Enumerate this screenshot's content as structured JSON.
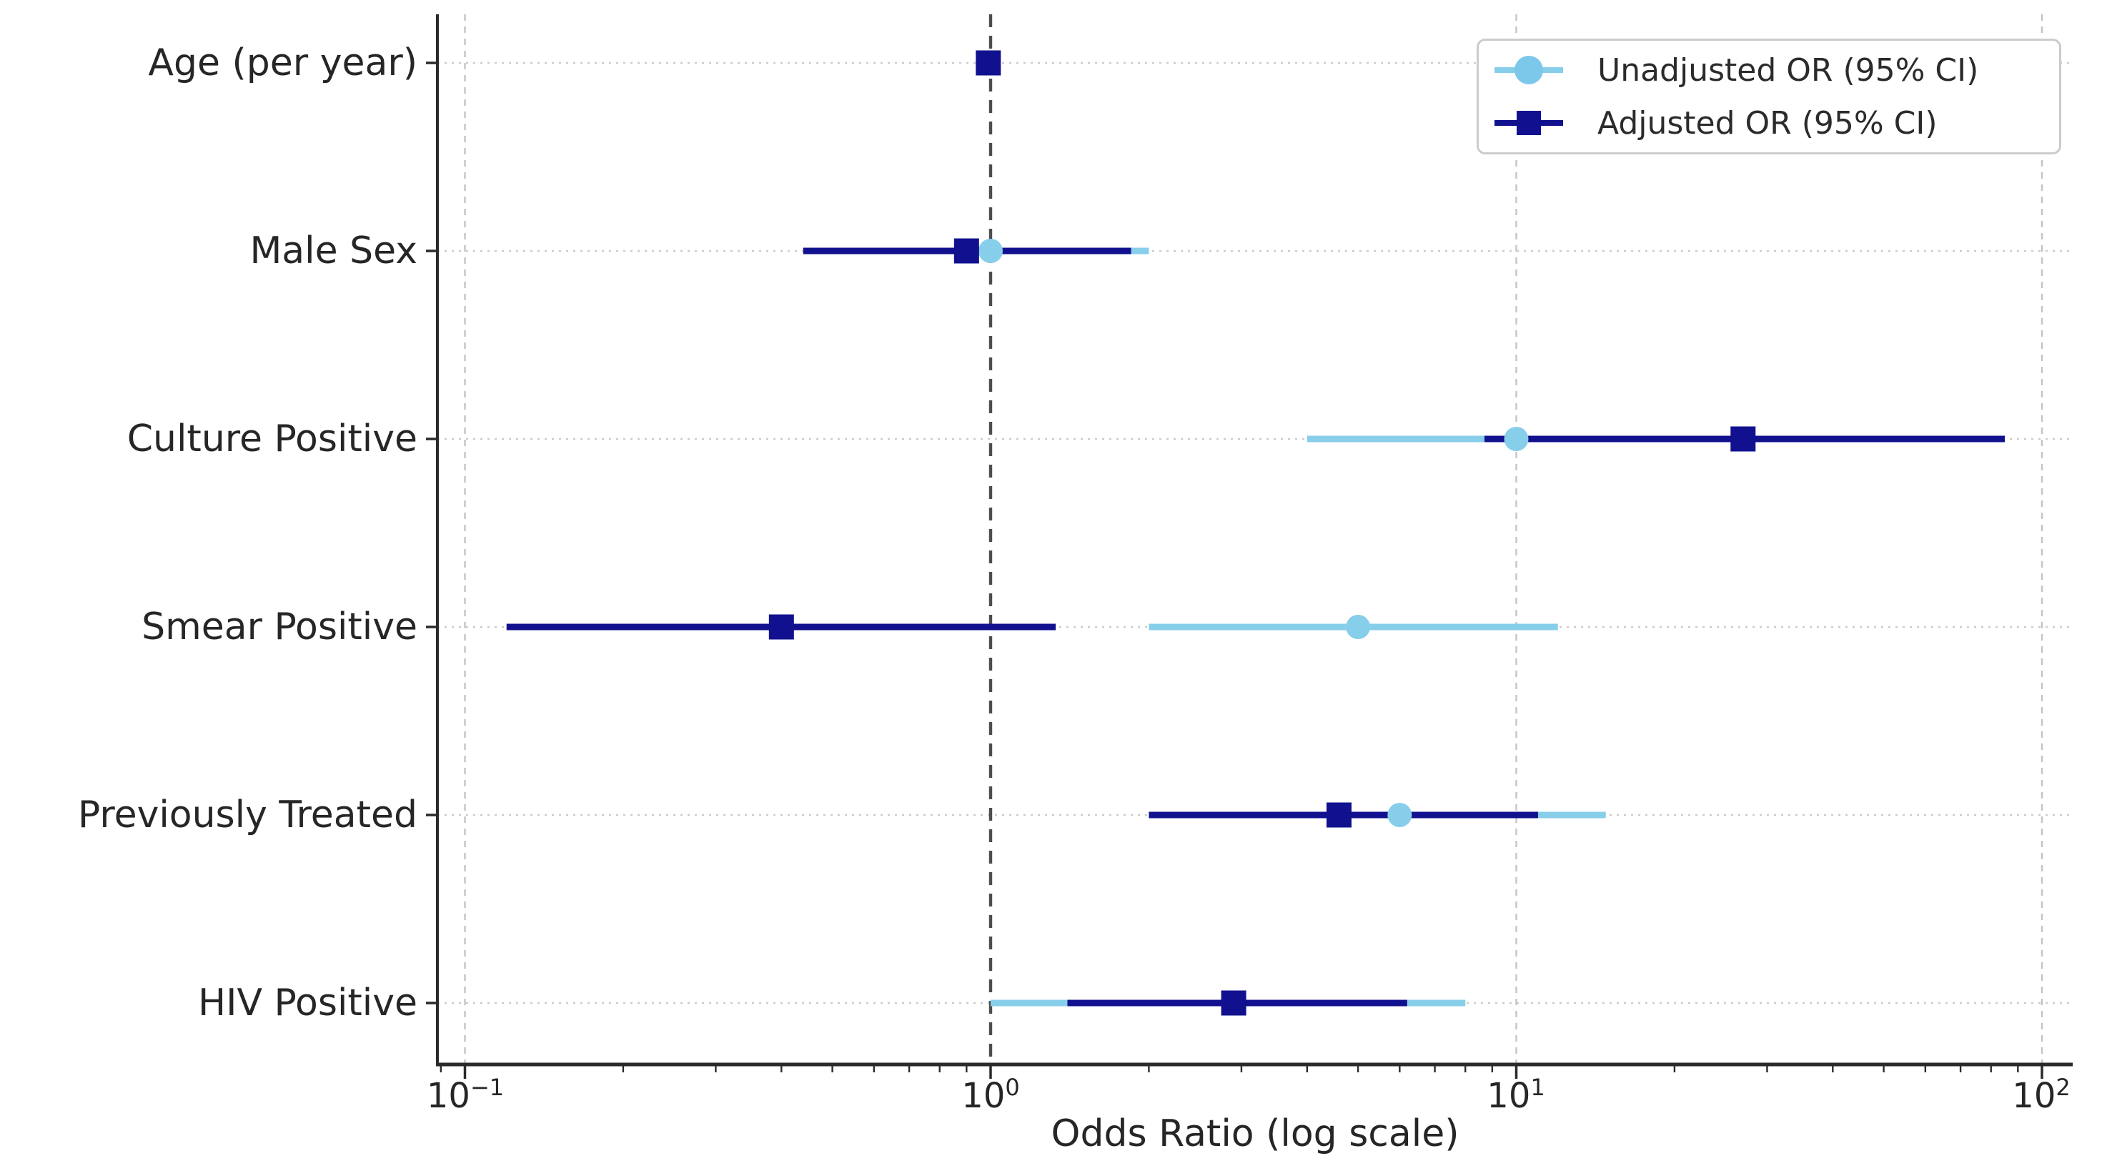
{
  "chart_data": {
    "type": "scatter",
    "variant": "forest-plot",
    "title": "",
    "xlabel": "Odds Ratio (log scale)",
    "x_scale": "log",
    "xlim": [
      0.087,
      115
    ],
    "grid": true,
    "legend_position": "upper right",
    "reference_line_value": 1.0,
    "x_ticks": [
      {
        "label": "10⁻¹",
        "base": "10",
        "exp": "−1",
        "value": 0.1
      },
      {
        "label": "10⁰",
        "base": "10",
        "exp": "0",
        "value": 1
      },
      {
        "label": "10¹",
        "base": "10",
        "exp": "1",
        "value": 10
      },
      {
        "label": "10²",
        "base": "10",
        "exp": "2",
        "value": 100
      }
    ],
    "categories": [
      "Age (per year)",
      "Male Sex",
      "Culture Positive",
      "Smear Positive",
      "Previously Treated",
      "HIV Positive"
    ],
    "series": [
      {
        "name": "Unadjusted OR (95% CI)",
        "marker": "circle",
        "color": "#87CEEB",
        "values": [
          {
            "or": 0.99,
            "lo": 0.98,
            "hi": 1.0
          },
          {
            "or": 1.0,
            "lo": 0.5,
            "hi": 2.0
          },
          {
            "or": 10.0,
            "lo": 4.0,
            "hi": 25.0
          },
          {
            "or": 5.0,
            "lo": 2.0,
            "hi": 12.0
          },
          {
            "or": 6.0,
            "lo": 2.4,
            "hi": 14.8
          },
          {
            "or": 2.9,
            "lo": 1.0,
            "hi": 8.0
          }
        ]
      },
      {
        "name": "Adjusted OR (95% CI)",
        "marker": "square",
        "color": "#11118F",
        "values": [
          {
            "or": 0.99,
            "lo": 0.97,
            "hi": 1.01
          },
          {
            "or": 0.9,
            "lo": 0.44,
            "hi": 1.85
          },
          {
            "or": 27.0,
            "lo": 8.7,
            "hi": 85.0
          },
          {
            "or": 0.4,
            "lo": 0.12,
            "hi": 1.33
          },
          {
            "or": 4.6,
            "lo": 2.0,
            "hi": 11.0
          },
          {
            "or": 2.9,
            "lo": 1.4,
            "hi": 6.2
          }
        ]
      }
    ],
    "colors": {
      "unadjusted": "#87CEEB",
      "adjusted": "#11118F",
      "row_grid": "#CCCCCC",
      "decade_grid": "#C4C4C4",
      "reference_line": "#4D4D4D",
      "spine": "#2A2A2A",
      "text": "#262626"
    }
  }
}
